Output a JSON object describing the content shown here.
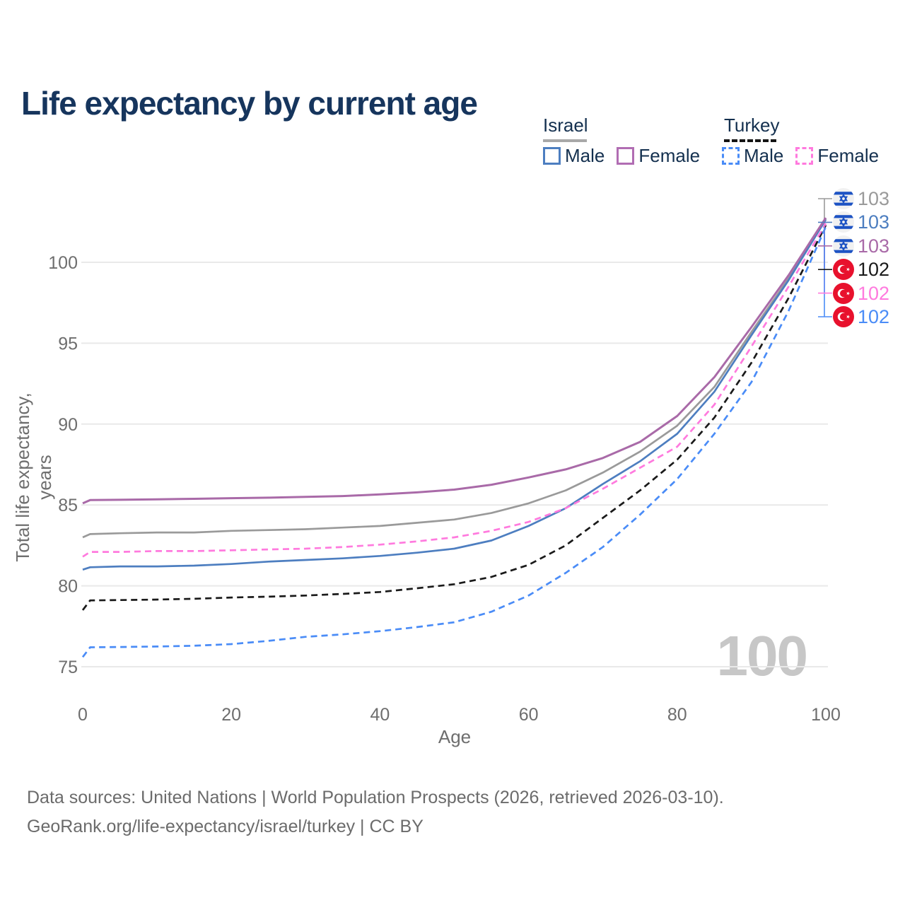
{
  "title": "Life expectancy by current age",
  "watermark": {
    "text": "100"
  },
  "legend": {
    "groups": [
      {
        "country": "Israel",
        "underline_color": "#a8a8a8",
        "underline_dashed": false,
        "items": [
          {
            "label": "Male",
            "color": "#4d7ec0",
            "dashed": false
          },
          {
            "label": "Female",
            "color": "#b16db3",
            "dashed": false
          }
        ]
      },
      {
        "country": "Turkey",
        "underline_color": "#141414",
        "underline_dashed": true,
        "items": [
          {
            "label": "Male",
            "color": "#4a8cf7",
            "dashed": true
          },
          {
            "label": "Female",
            "color": "#ff7ade",
            "dashed": true
          }
        ]
      }
    ]
  },
  "chart_data": {
    "type": "line",
    "title": "Life expectancy by current age",
    "xlabel": "Age",
    "ylabel": "Total life expectancy, years",
    "xlim": [
      0,
      100
    ],
    "ylim": [
      75,
      100
    ],
    "xticks": [
      0,
      20,
      40,
      60,
      80,
      100
    ],
    "yticks": [
      75,
      80,
      85,
      90,
      95,
      100
    ],
    "grid": "horizontal",
    "legend_position": "top-right",
    "x": [
      0,
      1,
      5,
      10,
      15,
      20,
      25,
      30,
      35,
      40,
      45,
      50,
      55,
      60,
      65,
      70,
      75,
      80,
      85,
      90,
      95,
      100
    ],
    "series": [
      {
        "name": "Israel",
        "group": "Israel",
        "sex": "both",
        "color": "#9a9a9a",
        "dashed": false,
        "end_label": "103",
        "flag": "israel",
        "values": [
          83.0,
          83.2,
          83.25,
          83.3,
          83.3,
          83.4,
          83.45,
          83.5,
          83.6,
          83.7,
          83.9,
          84.1,
          84.5,
          85.1,
          85.9,
          87.0,
          88.3,
          89.9,
          92.3,
          95.7,
          99.0,
          102.7
        ]
      },
      {
        "name": "Israel Male",
        "group": "Israel",
        "sex": "male",
        "color": "#4d7ec0",
        "dashed": false,
        "end_label": "103",
        "flag": "israel",
        "values": [
          81.0,
          81.15,
          81.2,
          81.2,
          81.25,
          81.35,
          81.5,
          81.6,
          81.7,
          81.85,
          82.05,
          82.3,
          82.8,
          83.7,
          84.8,
          86.3,
          87.7,
          89.4,
          92.0,
          95.5,
          98.9,
          102.65
        ]
      },
      {
        "name": "Israel Female",
        "group": "Israel",
        "sex": "female",
        "color": "#a96aa8",
        "dashed": false,
        "end_label": "103",
        "flag": "israel",
        "values": [
          85.1,
          85.3,
          85.32,
          85.35,
          85.38,
          85.42,
          85.45,
          85.5,
          85.55,
          85.65,
          85.78,
          85.95,
          86.25,
          86.7,
          87.2,
          87.9,
          88.9,
          90.5,
          92.9,
          96.0,
          99.2,
          102.75
        ]
      },
      {
        "name": "Turkey",
        "group": "Turkey",
        "sex": "both",
        "color": "#1a1a1a",
        "dashed": true,
        "end_label": "102",
        "flag": "turkey",
        "values": [
          78.5,
          79.1,
          79.12,
          79.15,
          79.2,
          79.28,
          79.33,
          79.4,
          79.5,
          79.62,
          79.85,
          80.1,
          80.55,
          81.3,
          82.5,
          84.2,
          85.9,
          87.8,
          90.4,
          93.8,
          97.8,
          102.3
        ]
      },
      {
        "name": "Turkey Female",
        "group": "Turkey",
        "sex": "female",
        "color": "#ff7ade",
        "dashed": true,
        "end_label": "102",
        "flag": "turkey",
        "values": [
          81.8,
          82.1,
          82.1,
          82.15,
          82.15,
          82.2,
          82.25,
          82.3,
          82.4,
          82.55,
          82.75,
          83.0,
          83.4,
          83.95,
          84.8,
          86.0,
          87.3,
          88.6,
          91.2,
          94.8,
          98.5,
          102.4
        ]
      },
      {
        "name": "Turkey Male",
        "group": "Turkey",
        "sex": "male",
        "color": "#4a8cf7",
        "dashed": true,
        "end_label": "102",
        "flag": "turkey",
        "values": [
          75.6,
          76.2,
          76.22,
          76.25,
          76.3,
          76.4,
          76.6,
          76.85,
          77.0,
          77.2,
          77.45,
          77.75,
          78.4,
          79.4,
          80.8,
          82.4,
          84.4,
          86.6,
          89.4,
          92.6,
          97.0,
          102.2
        ]
      }
    ]
  },
  "footer": {
    "line1": "Data sources: United Nations | World Population Prospects (2026, retrieved 2026-03-10).",
    "line2": "GeoRank.org/life-expectancy/israel/turkey | CC BY"
  }
}
